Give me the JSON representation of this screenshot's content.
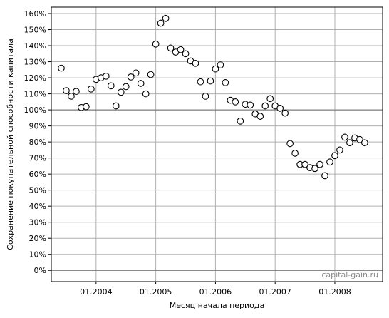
{
  "chart_data": {
    "type": "scatter",
    "title": "",
    "xlabel": "Месяц начала периода",
    "ylabel": "Сохранение покупательной способности капитала",
    "watermark": "capital-gain.ru",
    "xlim": [
      2003.25,
      2008.8
    ],
    "ylim": [
      -7,
      164
    ],
    "grid": true,
    "reference_lines_y": [
      0,
      100
    ],
    "x_ticks": [
      2004,
      2005,
      2006,
      2007,
      2008
    ],
    "x_tick_labels": [
      "01.2004",
      "01.2005",
      "01.2006",
      "01.2007",
      "01.2008"
    ],
    "y_ticks": [
      0,
      10,
      20,
      30,
      40,
      50,
      60,
      70,
      80,
      90,
      100,
      110,
      120,
      130,
      140,
      150,
      160
    ],
    "y_tick_labels": [
      "0%",
      "10%",
      "20%",
      "30%",
      "40%",
      "50%",
      "60%",
      "70%",
      "80%",
      "90%",
      "100%",
      "110%",
      "120%",
      "130%",
      "140%",
      "150%",
      "160%"
    ],
    "marker_color": "#000000",
    "marker_face": "#ffffff",
    "x": [
      2003.4167,
      2003.5,
      2003.5833,
      2003.6667,
      2003.75,
      2003.8333,
      2003.9167,
      2004.0,
      2004.0833,
      2004.1667,
      2004.25,
      2004.3333,
      2004.4167,
      2004.5,
      2004.5833,
      2004.6667,
      2004.75,
      2004.8333,
      2004.9167,
      2005.0,
      2005.0833,
      2005.1667,
      2005.25,
      2005.3333,
      2005.4167,
      2005.5,
      2005.5833,
      2005.6667,
      2005.75,
      2005.8333,
      2005.9167,
      2006.0,
      2006.0833,
      2006.1667,
      2006.25,
      2006.3333,
      2006.4167,
      2006.5,
      2006.5833,
      2006.6667,
      2006.75,
      2006.8333,
      2006.9167,
      2007.0,
      2007.0833,
      2007.1667,
      2007.25,
      2007.3333,
      2007.4167,
      2007.5,
      2007.5833,
      2007.6667,
      2007.75,
      2007.8333,
      2007.9167,
      2008.0,
      2008.0833,
      2008.1667,
      2008.25,
      2008.3333,
      2008.4167,
      2008.5
    ],
    "y": [
      126,
      112,
      108.5,
      111.5,
      101.5,
      102,
      113,
      119,
      120,
      121,
      115,
      102.5,
      111,
      114.5,
      120.5,
      123,
      116.5,
      110,
      122,
      141,
      154,
      157,
      138.5,
      136,
      137.5,
      135,
      130.5,
      129,
      117.5,
      108.5,
      118,
      125.5,
      128,
      117,
      106,
      105,
      93,
      103.5,
      103,
      97.5,
      96,
      102.5,
      107,
      102.5,
      101,
      98,
      79,
      73,
      66,
      66,
      64,
      63.5,
      66,
      59,
      67.5,
      71.5,
      75,
      83,
      79.5,
      82.5,
      81.5,
      79.5
    ]
  }
}
